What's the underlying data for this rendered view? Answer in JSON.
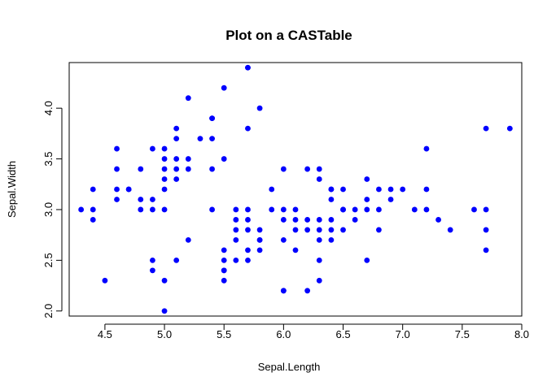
{
  "chart_data": {
    "type": "scatter",
    "title": "Plot on a CASTable",
    "xlabel": "Sepal.Length",
    "ylabel": "Sepal.Width",
    "xlim": [
      4.2,
      8.0
    ],
    "ylim": [
      1.95,
      4.45
    ],
    "xticks": [
      4.5,
      5.0,
      5.5,
      6.0,
      6.5,
      7.0,
      7.5,
      8.0
    ],
    "xtick_labels": [
      "4.5",
      "5.0",
      "5.5",
      "6.0",
      "6.5",
      "7.0",
      "7.5",
      "8.0"
    ],
    "yticks": [
      2.0,
      2.5,
      3.0,
      3.5,
      4.0
    ],
    "ytick_labels": [
      "2.0",
      "2.5",
      "3.0",
      "3.5",
      "4.0"
    ],
    "grid": false,
    "point_color": "#0000ff",
    "x": [
      4.3,
      4.4,
      4.4,
      4.4,
      4.5,
      4.6,
      4.6,
      4.6,
      4.6,
      4.7,
      4.7,
      4.8,
      4.8,
      4.8,
      4.9,
      4.9,
      4.9,
      4.9,
      4.9,
      5.0,
      5.0,
      5.0,
      5.0,
      5.0,
      5.0,
      5.0,
      5.0,
      5.1,
      5.1,
      5.1,
      5.1,
      5.1,
      5.1,
      5.2,
      5.2,
      5.2,
      5.2,
      5.3,
      5.4,
      5.4,
      5.4,
      5.4,
      5.4,
      5.5,
      5.5,
      5.5,
      5.5,
      5.5,
      5.5,
      5.5,
      5.6,
      5.6,
      5.6,
      5.6,
      5.6,
      5.7,
      5.7,
      5.7,
      5.7,
      5.7,
      5.7,
      5.7,
      5.7,
      5.8,
      5.8,
      5.8,
      5.8,
      5.8,
      5.9,
      5.9,
      6.0,
      6.0,
      6.0,
      6.0,
      6.0,
      6.0,
      6.1,
      6.1,
      6.1,
      6.1,
      6.2,
      6.2,
      6.2,
      6.2,
      6.3,
      6.3,
      6.3,
      6.3,
      6.3,
      6.3,
      6.3,
      6.4,
      6.4,
      6.4,
      6.4,
      6.4,
      6.4,
      6.5,
      6.5,
      6.5,
      6.5,
      6.6,
      6.6,
      6.7,
      6.7,
      6.7,
      6.7,
      6.8,
      6.8,
      6.8,
      6.9,
      6.9,
      7.0,
      7.1,
      7.2,
      7.2,
      7.2,
      7.3,
      7.4,
      7.6,
      7.7,
      7.7,
      7.7,
      7.7,
      7.9
    ],
    "y": [
      3.0,
      2.9,
      3.0,
      3.2,
      2.3,
      3.1,
      3.2,
      3.4,
      3.6,
      3.2,
      3.2,
      3.0,
      3.1,
      3.4,
      2.4,
      2.5,
      3.0,
      3.1,
      3.6,
      2.0,
      2.3,
      3.0,
      3.2,
      3.3,
      3.4,
      3.5,
      3.6,
      2.5,
      3.3,
      3.4,
      3.5,
      3.7,
      3.8,
      2.7,
      3.4,
      3.5,
      4.1,
      3.7,
      3.0,
      3.4,
      3.7,
      3.9,
      3.9,
      2.3,
      2.4,
      2.5,
      2.6,
      3.5,
      4.2,
      2.4,
      2.5,
      2.7,
      2.8,
      2.9,
      3.0,
      2.5,
      2.6,
      2.8,
      2.9,
      3.0,
      3.8,
      4.4,
      4.4,
      2.6,
      2.7,
      2.8,
      4.0,
      2.7,
      3.0,
      3.2,
      2.2,
      2.7,
      2.9,
      3.0,
      3.4,
      2.2,
      2.6,
      2.8,
      2.9,
      3.0,
      2.2,
      2.8,
      2.9,
      3.4,
      2.3,
      2.5,
      2.7,
      2.8,
      2.9,
      3.3,
      3.4,
      2.7,
      2.8,
      2.9,
      3.1,
      3.2,
      3.2,
      2.8,
      3.0,
      3.0,
      3.2,
      2.9,
      3.0,
      2.5,
      3.0,
      3.1,
      3.3,
      2.8,
      3.0,
      3.2,
      3.1,
      3.2,
      3.2,
      3.0,
      3.0,
      3.2,
      3.6,
      2.9,
      2.8,
      3.0,
      2.6,
      2.8,
      3.0,
      3.8,
      3.8
    ]
  }
}
